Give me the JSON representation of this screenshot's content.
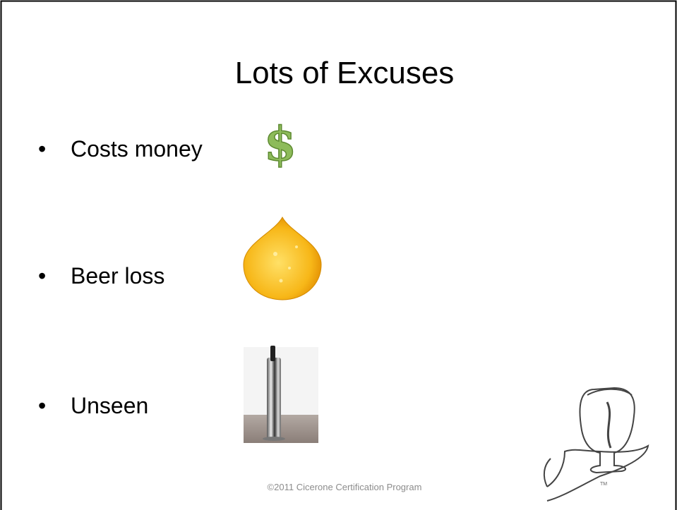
{
  "slide": {
    "title": "Lots of Excuses",
    "bullets": [
      "Costs money",
      "Beer loss",
      "Unseen"
    ],
    "footer": "©2011 Cicerone Certification Program",
    "trademark": "TM"
  }
}
